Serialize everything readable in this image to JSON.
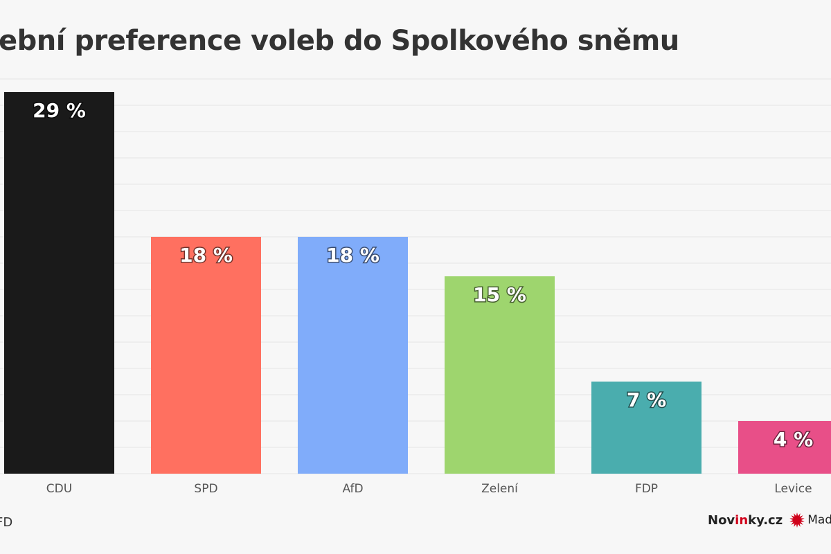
{
  "title": "ební preference voleb do Spolkového sněmu",
  "source": "FD",
  "brand": {
    "logo_prefix": "Nov",
    "logo_accent": "in",
    "logo_suffix": "ky.cz",
    "made_text": "Made w",
    "star_icon": "burst-star-icon",
    "accent_color": "#d0021b"
  },
  "chart_data": {
    "type": "bar",
    "title": "ební preference voleb do Spolkového sněmu",
    "categories": [
      "CDU",
      "SPD",
      "AfD",
      "Zelení",
      "FDP",
      "Levice"
    ],
    "values": [
      29,
      18,
      18,
      15,
      7,
      4
    ],
    "value_labels": [
      "29 %",
      "18 %",
      "18 %",
      "15 %",
      "7 %",
      "4 %"
    ],
    "colors": [
      "#1a1a1a",
      "#ff7060",
      "#80acfa",
      "#9ed56e",
      "#4aadae",
      "#e84f88"
    ],
    "ylim": [
      0,
      30
    ],
    "grid": true,
    "legend": "none",
    "xlabel": "",
    "ylabel": ""
  }
}
